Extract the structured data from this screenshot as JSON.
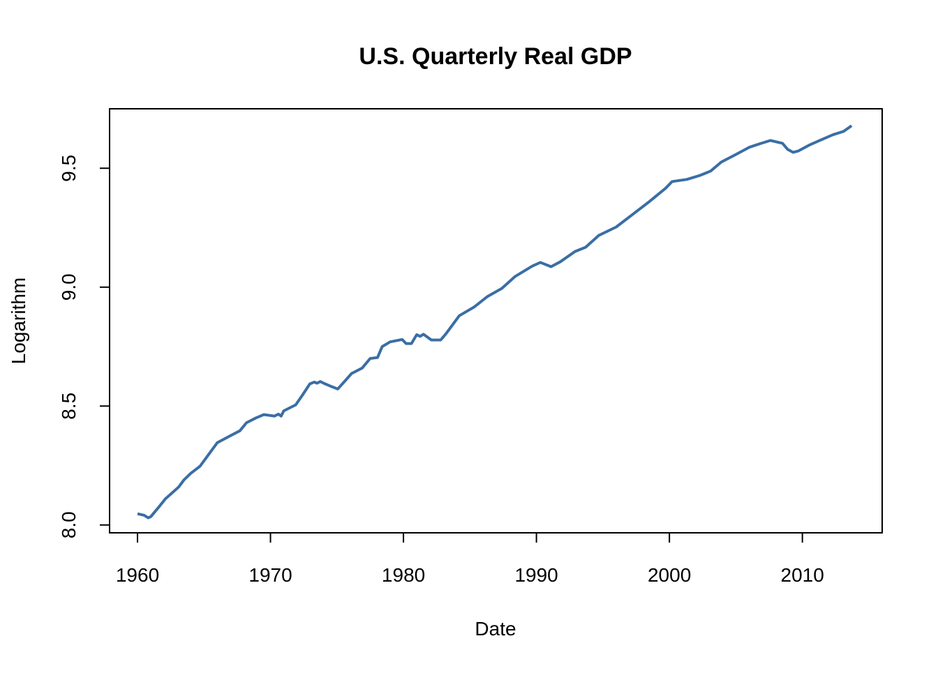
{
  "chart_data": {
    "type": "line",
    "title": "U.S. Quarterly Real GDP",
    "xlabel": "Date",
    "ylabel": "Logarithm",
    "xlim": [
      1957.9,
      2016.0
    ],
    "ylim": [
      7.967,
      9.75
    ],
    "x_ticks": [
      1960,
      1970,
      1980,
      1990,
      2000,
      2010
    ],
    "y_ticks": [
      "8.0",
      "8.5",
      "9.0",
      "9.5"
    ],
    "grid": false,
    "line_color": "#3a6ea5",
    "series": [
      {
        "x": [
          1960.0,
          1960.5,
          1960.8,
          1961.0,
          1961.7,
          1962.1,
          1962.6,
          1963.1,
          1963.5,
          1964.0,
          1964.7,
          1965.2,
          1966.0,
          1966.9,
          1967.7,
          1968.2,
          1968.9,
          1969.5,
          1970.3,
          1970.6,
          1970.8,
          1971.0,
          1971.9,
          1972.4,
          1972.96,
          1973.3,
          1973.5,
          1973.75,
          1974.0,
          1974.5,
          1975.06,
          1975.6,
          1976.1,
          1976.9,
          1977.5,
          1978.05,
          1978.4,
          1979.0,
          1979.9,
          1980.2,
          1980.6,
          1981.0,
          1981.25,
          1981.5,
          1982.1,
          1982.8,
          1983.2,
          1984.2,
          1985.3,
          1986.3,
          1987.4,
          1988.4,
          1989.7,
          1990.3,
          1991.1,
          1991.8,
          1992.9,
          1993.7,
          1994.7,
          1996.0,
          1997.1,
          1998.4,
          1999.7,
          2000.2,
          2001.3,
          2002.3,
          2003.1,
          2003.9,
          2005.0,
          2006.0,
          2006.8,
          2007.6,
          2008.1,
          2008.5,
          2008.9,
          2009.3,
          2009.7,
          2010.5,
          2011.3,
          2012.3,
          2013.1,
          2013.7
        ],
        "y": [
          8.047,
          8.041,
          8.03,
          8.035,
          8.082,
          8.11,
          8.135,
          8.16,
          8.19,
          8.217,
          8.247,
          8.285,
          8.346,
          8.373,
          8.396,
          8.43,
          8.45,
          8.464,
          8.458,
          8.466,
          8.458,
          8.48,
          8.505,
          8.546,
          8.593,
          8.601,
          8.596,
          8.603,
          8.596,
          8.584,
          8.572,
          8.605,
          8.637,
          8.66,
          8.7,
          8.704,
          8.75,
          8.77,
          8.78,
          8.763,
          8.763,
          8.8,
          8.793,
          8.802,
          8.778,
          8.778,
          8.804,
          8.88,
          8.916,
          8.96,
          8.995,
          9.045,
          9.089,
          9.104,
          9.086,
          9.107,
          9.15,
          9.168,
          9.218,
          9.253,
          9.3,
          9.356,
          9.415,
          9.444,
          9.453,
          9.47,
          9.488,
          9.526,
          9.558,
          9.588,
          9.603,
          9.617,
          9.61,
          9.605,
          9.579,
          9.567,
          9.573,
          9.597,
          9.617,
          9.641,
          9.655,
          9.679
        ]
      }
    ]
  }
}
